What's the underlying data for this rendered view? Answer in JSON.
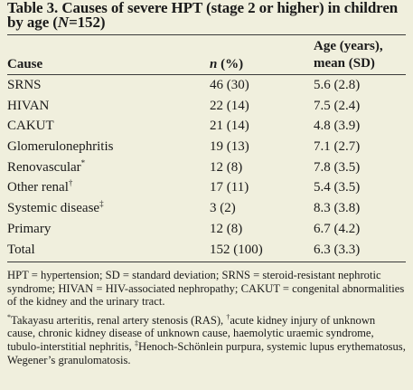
{
  "table": {
    "title_prefix": "Table 3. Causes of severe HPT (stage 2 or higher) in children by age (",
    "title_n": "N",
    "title_suffix": "=152)",
    "headers": {
      "cause": "Cause",
      "n_italic": "n",
      "n_rest": " (%)",
      "age_line1": "Age (years),",
      "age_line2": "mean (SD)"
    },
    "rows": [
      {
        "cause": "SRNS",
        "mark": "",
        "n": "46 (30)",
        "age": "5.6 (2.8)"
      },
      {
        "cause": "HIVAN",
        "mark": "",
        "n": "22 (14)",
        "age": "7.5 (2.4)"
      },
      {
        "cause": "CAKUT",
        "mark": "",
        "n": "21 (14)",
        "age": "4.8 (3.9)"
      },
      {
        "cause": "Glomerulonephritis",
        "mark": "",
        "n": "19 (13)",
        "age": "7.1 (2.7)"
      },
      {
        "cause": "Renovascular",
        "mark": "*",
        "n": "12 (8)",
        "age": "7.8 (3.5)"
      },
      {
        "cause": "Other renal",
        "mark": "†",
        "n": "17 (11)",
        "age": "5.4 (3.5)"
      },
      {
        "cause": "Systemic disease",
        "mark": "‡",
        "n": "3 (2)",
        "age": "8.3 (3.8)"
      },
      {
        "cause": "Primary",
        "mark": "",
        "n": "12 (8)",
        "age": "6.7 (4.2)"
      },
      {
        "cause": "Total",
        "mark": "",
        "n": "152 (100)",
        "age": "6.3 (3.3)"
      }
    ]
  },
  "footnotes": {
    "abbreviations": "HPT = hypertension; SD = standard deviation; SRNS = steroid-resistant nephrotic syndrome; HIVAN = HIV-associated nephropathy; CAKUT = congenital abnormalities of the kidney and the urinary tract.",
    "star_mark": "*",
    "star_text": "Takayasu arteritis, renal artery stenosis (RAS), ",
    "dagger_mark": "†",
    "dagger_text": "acute kidney injury of unknown cause, chronic kidney disease of unknown cause, haemolytic uraemic syndrome, tubulo-interstitial nephritis, ",
    "ddagger_mark": "‡",
    "ddagger_text": "Henoch-Schönlein purpura, systemic lupus erythematosus, Wegener’s granulomatosis."
  }
}
